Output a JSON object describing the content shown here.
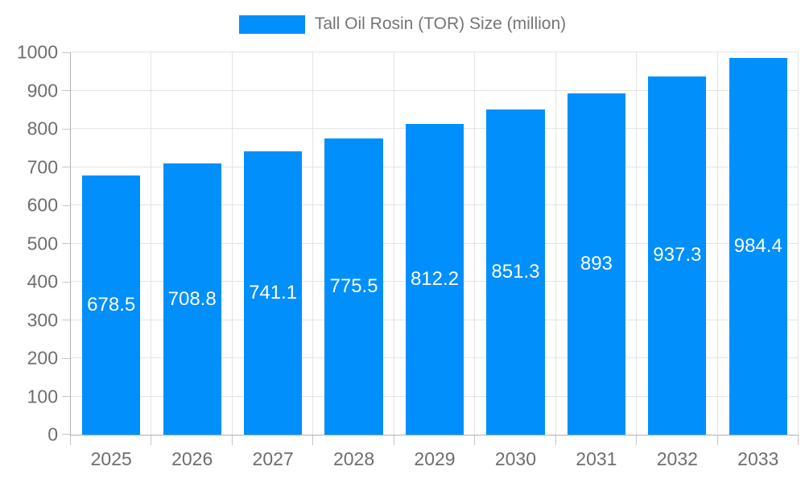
{
  "legend": {
    "label": "Tall Oil Rosin (TOR) Size (million)"
  },
  "chart_data": {
    "type": "bar",
    "title": "",
    "categories": [
      "2025",
      "2026",
      "2027",
      "2028",
      "2029",
      "2030",
      "2031",
      "2032",
      "2033"
    ],
    "series": [
      {
        "name": "Tall Oil Rosin (TOR) Size (million)",
        "values": [
          678.5,
          708.8,
          741.1,
          775.5,
          812.2,
          851.3,
          893,
          937.3,
          984.4
        ]
      }
    ],
    "value_labels": [
      "678.5",
      "708.8",
      "741.1",
      "775.5",
      "812.2",
      "851.3",
      "893",
      "937.3",
      "984.4"
    ],
    "xlabel": "",
    "ylabel": "",
    "ylim": [
      0,
      1000
    ],
    "ytick_step": 100,
    "grid": "horizontal and vertical light gray",
    "legend_position": "top-center",
    "colors": {
      "bar": "#008FFB",
      "value_label": "#ffffff",
      "axis_text": "#6e6e6e",
      "legend_text": "#757575",
      "gridline": "#e4e4e4",
      "axis_line": "#b0b0b0"
    }
  }
}
